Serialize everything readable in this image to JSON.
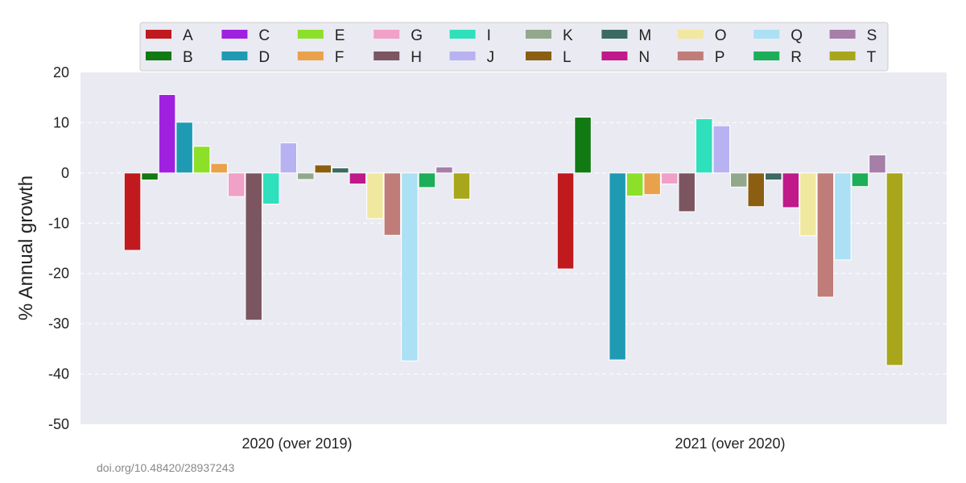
{
  "chart_data": {
    "type": "bar",
    "categories": [
      "2020 (over 2019)",
      "2021 (over 2020)"
    ],
    "ylabel": "% Annual growth",
    "xlabel": "",
    "ylim": [
      -50,
      20
    ],
    "yticks": [
      20,
      10,
      0,
      -10,
      -20,
      -30,
      -40,
      -50
    ],
    "grid": "horizontal dashed",
    "legend_position": "top",
    "series": [
      {
        "name": "A",
        "color": "#c0191e",
        "values": [
          -15.4,
          -19.1
        ]
      },
      {
        "name": "B",
        "color": "#127a12",
        "values": [
          -1.4,
          11.1
        ]
      },
      {
        "name": "C",
        "color": "#a020e0",
        "values": [
          15.6,
          0
        ]
      },
      {
        "name": "D",
        "color": "#1e9bb3",
        "values": [
          10.1,
          -37.2
        ]
      },
      {
        "name": "E",
        "color": "#8de02a",
        "values": [
          5.3,
          -4.6
        ]
      },
      {
        "name": "F",
        "color": "#e9a24b",
        "values": [
          1.9,
          -4.3
        ]
      },
      {
        "name": "G",
        "color": "#f1a0c8",
        "values": [
          -4.7,
          -2.2
        ]
      },
      {
        "name": "H",
        "color": "#7b5560",
        "values": [
          -29.3,
          -7.7
        ]
      },
      {
        "name": "I",
        "color": "#2ee0bb",
        "values": [
          -6.2,
          10.8
        ]
      },
      {
        "name": "J",
        "color": "#b8b2f2",
        "values": [
          6.0,
          9.4
        ]
      },
      {
        "name": "K",
        "color": "#92a88c",
        "values": [
          -1.3,
          -2.8
        ]
      },
      {
        "name": "L",
        "color": "#8b5e12",
        "values": [
          1.6,
          -6.7
        ]
      },
      {
        "name": "M",
        "color": "#3a6a62",
        "values": [
          1.0,
          -1.4
        ]
      },
      {
        "name": "N",
        "color": "#c0198a",
        "values": [
          -2.2,
          -6.9
        ]
      },
      {
        "name": "O",
        "color": "#f1e8a0",
        "values": [
          -9.1,
          -12.5
        ]
      },
      {
        "name": "P",
        "color": "#c07c78",
        "values": [
          -12.4,
          -24.7
        ]
      },
      {
        "name": "Q",
        "color": "#ace0f4",
        "values": [
          -37.4,
          -17.3
        ]
      },
      {
        "name": "R",
        "color": "#1cae58",
        "values": [
          -2.9,
          -2.7
        ]
      },
      {
        "name": "S",
        "color": "#a67ea8",
        "values": [
          1.2,
          3.6
        ]
      },
      {
        "name": "T",
        "color": "#a8a61a",
        "values": [
          -5.2,
          -38.3
        ]
      }
    ]
  },
  "source_text": "doi.org/10.48420/28937243"
}
